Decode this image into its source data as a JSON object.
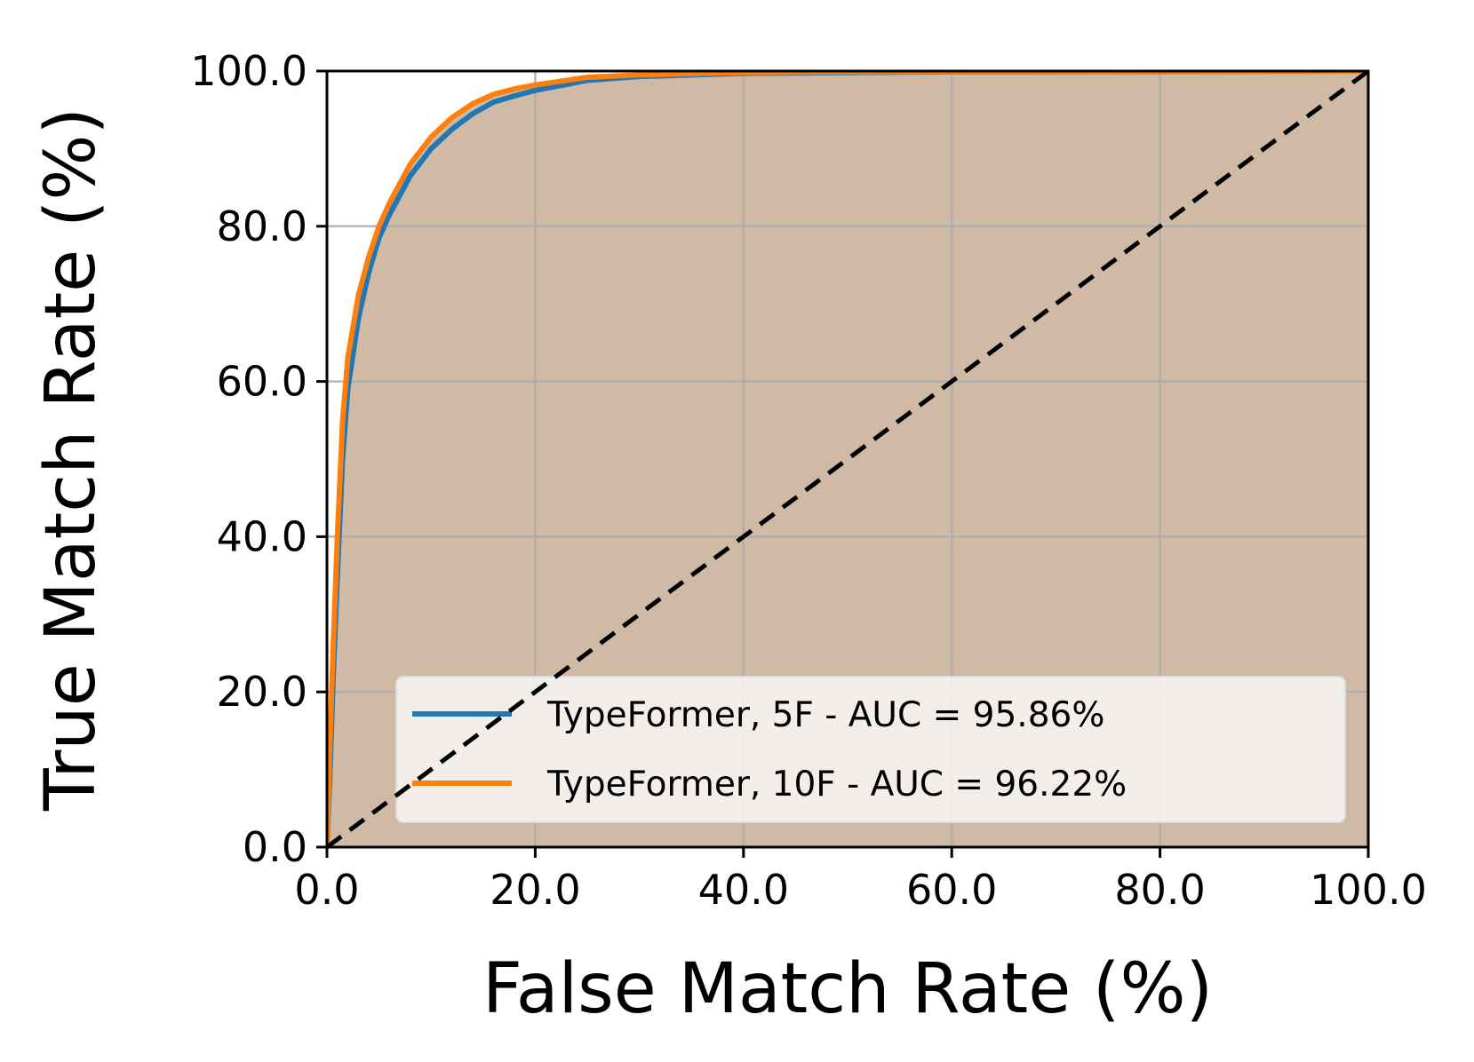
{
  "chart_data": {
    "type": "line",
    "title": "",
    "xlabel": "False Match Rate (%)",
    "ylabel": "True Match Rate (%)",
    "xlim": [
      0,
      100
    ],
    "ylim": [
      0,
      100
    ],
    "xticks": [
      "0.0",
      "20.0",
      "40.0",
      "60.0",
      "80.0",
      "100.0"
    ],
    "yticks": [
      "0.0",
      "20.0",
      "40.0",
      "60.0",
      "80.0",
      "100.0"
    ],
    "grid": true,
    "legend_position": "lower-right",
    "fill_under_curves": true,
    "fill_color": "#d0baa6",
    "diagonal": {
      "style": "dashed",
      "color": "#000000",
      "x": [
        0,
        100
      ],
      "y": [
        0,
        100
      ]
    },
    "series": [
      {
        "name": "TypeFormer, 5F - AUC = 95.86%",
        "color": "#1f77b4",
        "x": [
          0,
          0.3,
          0.6,
          1,
          1.5,
          2,
          3,
          4,
          5,
          6,
          7,
          8,
          10,
          12,
          14,
          16,
          18,
          20,
          25,
          30,
          40,
          50,
          60,
          80,
          100
        ],
        "y": [
          0,
          10,
          22,
          35,
          50,
          59,
          68,
          74,
          78.5,
          81.5,
          84,
          86.5,
          90,
          92.5,
          94.5,
          96,
          96.8,
          97.5,
          98.8,
          99.3,
          99.7,
          99.8,
          99.9,
          99.95,
          100
        ]
      },
      {
        "name": "TypeFormer, 10F - AUC = 96.22%",
        "color": "#ff7f0e",
        "x": [
          0,
          0.3,
          0.6,
          1,
          1.5,
          2,
          3,
          4,
          5,
          6,
          7,
          8,
          10,
          12,
          14,
          16,
          18,
          20,
          25,
          30,
          40,
          50,
          60,
          80,
          100
        ],
        "y": [
          0,
          14,
          26,
          40,
          55,
          63,
          71,
          76,
          80,
          83,
          85.5,
          88,
          91.5,
          94,
          95.8,
          97,
          97.7,
          98.2,
          99.2,
          99.5,
          99.8,
          99.9,
          99.95,
          100,
          100
        ]
      }
    ]
  }
}
